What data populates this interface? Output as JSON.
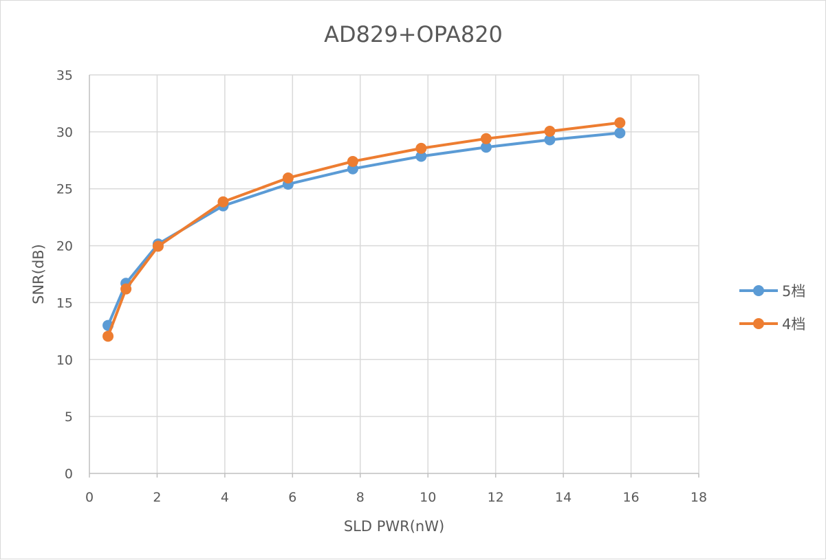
{
  "chart_data": {
    "type": "line",
    "title": "AD829+OPA820",
    "xlabel": "SLD PWR(nW)",
    "ylabel": "SNR(dB)",
    "xlim": [
      0,
      18
    ],
    "ylim": [
      0,
      35
    ],
    "x_ticks": [
      0,
      2,
      4,
      6,
      8,
      10,
      12,
      14,
      16,
      18
    ],
    "y_ticks": [
      0,
      5,
      10,
      15,
      20,
      25,
      30,
      35
    ],
    "grid": true,
    "legend_position": "right",
    "series": [
      {
        "name": "5档",
        "color": "#5B9BD5",
        "x": [
          0.55,
          1.08,
          2.03,
          3.95,
          5.87,
          7.78,
          9.8,
          11.72,
          13.6,
          15.67
        ],
        "y": [
          13.0,
          16.7,
          20.15,
          23.5,
          25.4,
          26.75,
          27.85,
          28.65,
          29.3,
          29.9
        ]
      },
      {
        "name": "4档",
        "color": "#ED7D31",
        "x": [
          0.55,
          1.08,
          2.03,
          3.95,
          5.87,
          7.78,
          9.8,
          11.72,
          13.6,
          15.67
        ],
        "y": [
          12.05,
          16.2,
          19.95,
          23.85,
          25.95,
          27.4,
          28.55,
          29.4,
          30.05,
          30.8
        ]
      }
    ]
  }
}
